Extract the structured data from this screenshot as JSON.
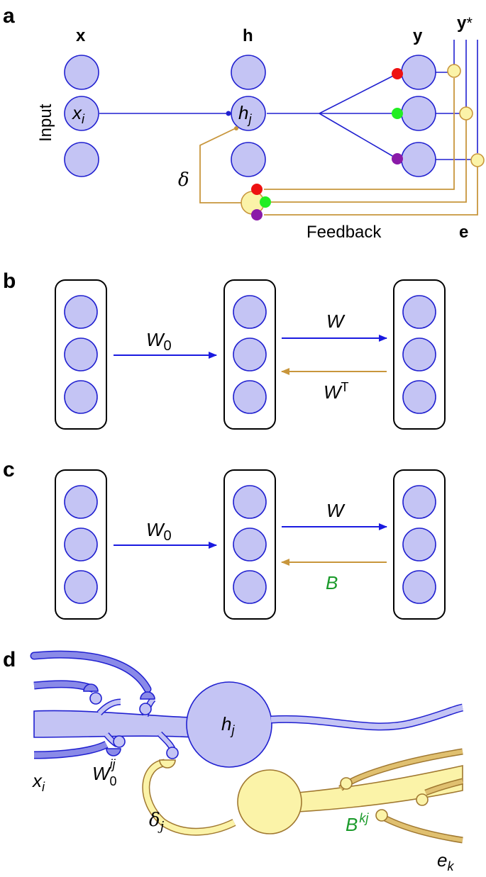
{
  "panels": {
    "a": {
      "letter": "a",
      "x_label": "x",
      "h_label": "h",
      "y_label": "y",
      "ystar_label": "y",
      "ystar_sup": "*",
      "input_label": "Input",
      "xi_base": "x",
      "xi_sub": "i",
      "hj_base": "h",
      "hj_sub": "j",
      "delta_label": "δ",
      "feedback_label": "Feedback",
      "e_label": "e",
      "dot_colors": [
        "#ee1111",
        "#22ee22",
        "#8a1aa8"
      ]
    },
    "b": {
      "letter": "b",
      "w0_base": "W",
      "w0_sub": "0",
      "w_label": "W",
      "wt_base": "W",
      "wt_sup": "T",
      "forward_color": "#1a1ae0",
      "feedback_color": "#c8963c"
    },
    "c": {
      "letter": "c",
      "w0_base": "W",
      "w0_sub": "0",
      "w_label": "W",
      "b_label": "B",
      "b_color": "#1a9a2a"
    },
    "d": {
      "letter": "d",
      "hj_base": "h",
      "hj_sub": "j",
      "xi_base": "x",
      "xi_sub": "i",
      "w0_base": "W",
      "w0_sub": "0",
      "w0_sup": "ij",
      "delta_base": "δ",
      "delta_sub": "j",
      "b_base": "B",
      "b_sup": "kj",
      "e_base": "e",
      "e_sub": "k",
      "neuron_color": "#c4c4f4",
      "feedback_neuron_color": "#fbf3a8"
    }
  }
}
